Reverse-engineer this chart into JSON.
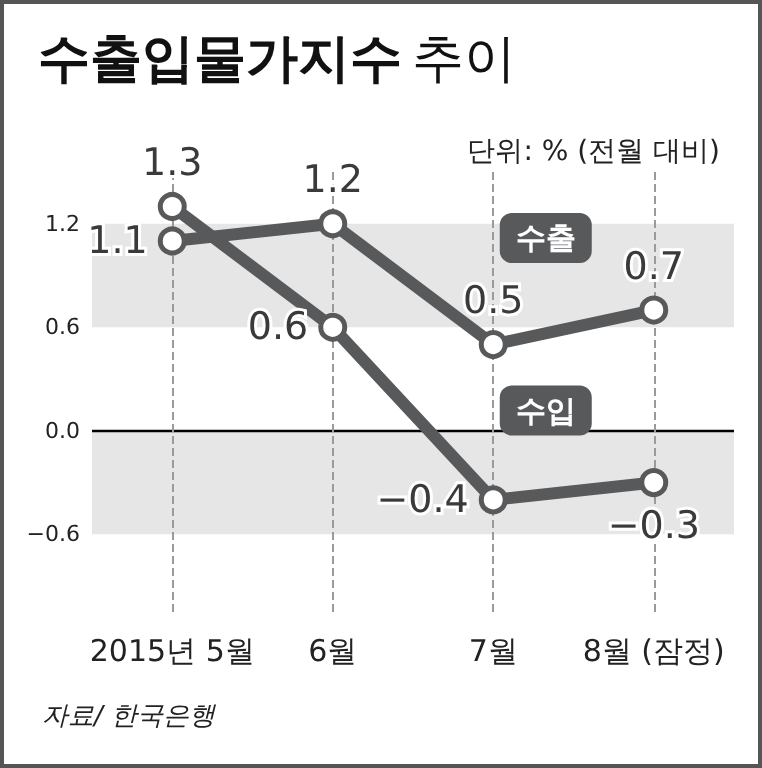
{
  "chart_data": {
    "type": "line",
    "title": "수출입물가지수 추이",
    "subtitle": "단위: % (전월 대비)",
    "categories": [
      "2015년 5월",
      "6월",
      "7월",
      "8월 (잠정)"
    ],
    "series": [
      {
        "name": "수출",
        "color": "#58595b",
        "values": [
          1.1,
          1.2,
          0.5,
          0.7
        ],
        "value_labels": [
          "1.1",
          "1.2",
          "0.5",
          "0.7"
        ]
      },
      {
        "name": "수입",
        "color": "#58595b",
        "values": [
          1.3,
          0.6,
          -0.4,
          -0.3
        ],
        "value_labels": [
          "1.3",
          "0.6",
          "−0.4",
          "−0.3"
        ]
      }
    ],
    "ylim": [
      -1.05,
      1.5
    ],
    "yticks": [
      {
        "value": -0.6,
        "label": "−0.6"
      },
      {
        "value": 0,
        "label": "0.0"
      },
      {
        "value": 0.6,
        "label": "0.6"
      },
      {
        "value": 1.2,
        "label": "1.2"
      }
    ],
    "bands": [
      {
        "axis": "y",
        "from": 0.6,
        "to": 1.2,
        "color": "#e6e6e6"
      },
      {
        "axis": "y",
        "from": -0.6,
        "to": 0,
        "color": "#e6e6e6"
      }
    ],
    "ref_lines": [
      {
        "axis": "y",
        "value": 0,
        "color": "#000000",
        "line_style": "solid"
      }
    ],
    "grid": "x",
    "legend": false,
    "marker": "circle",
    "line_style": "solid",
    "annotations": [
      "자료/ 한국은행"
    ]
  }
}
